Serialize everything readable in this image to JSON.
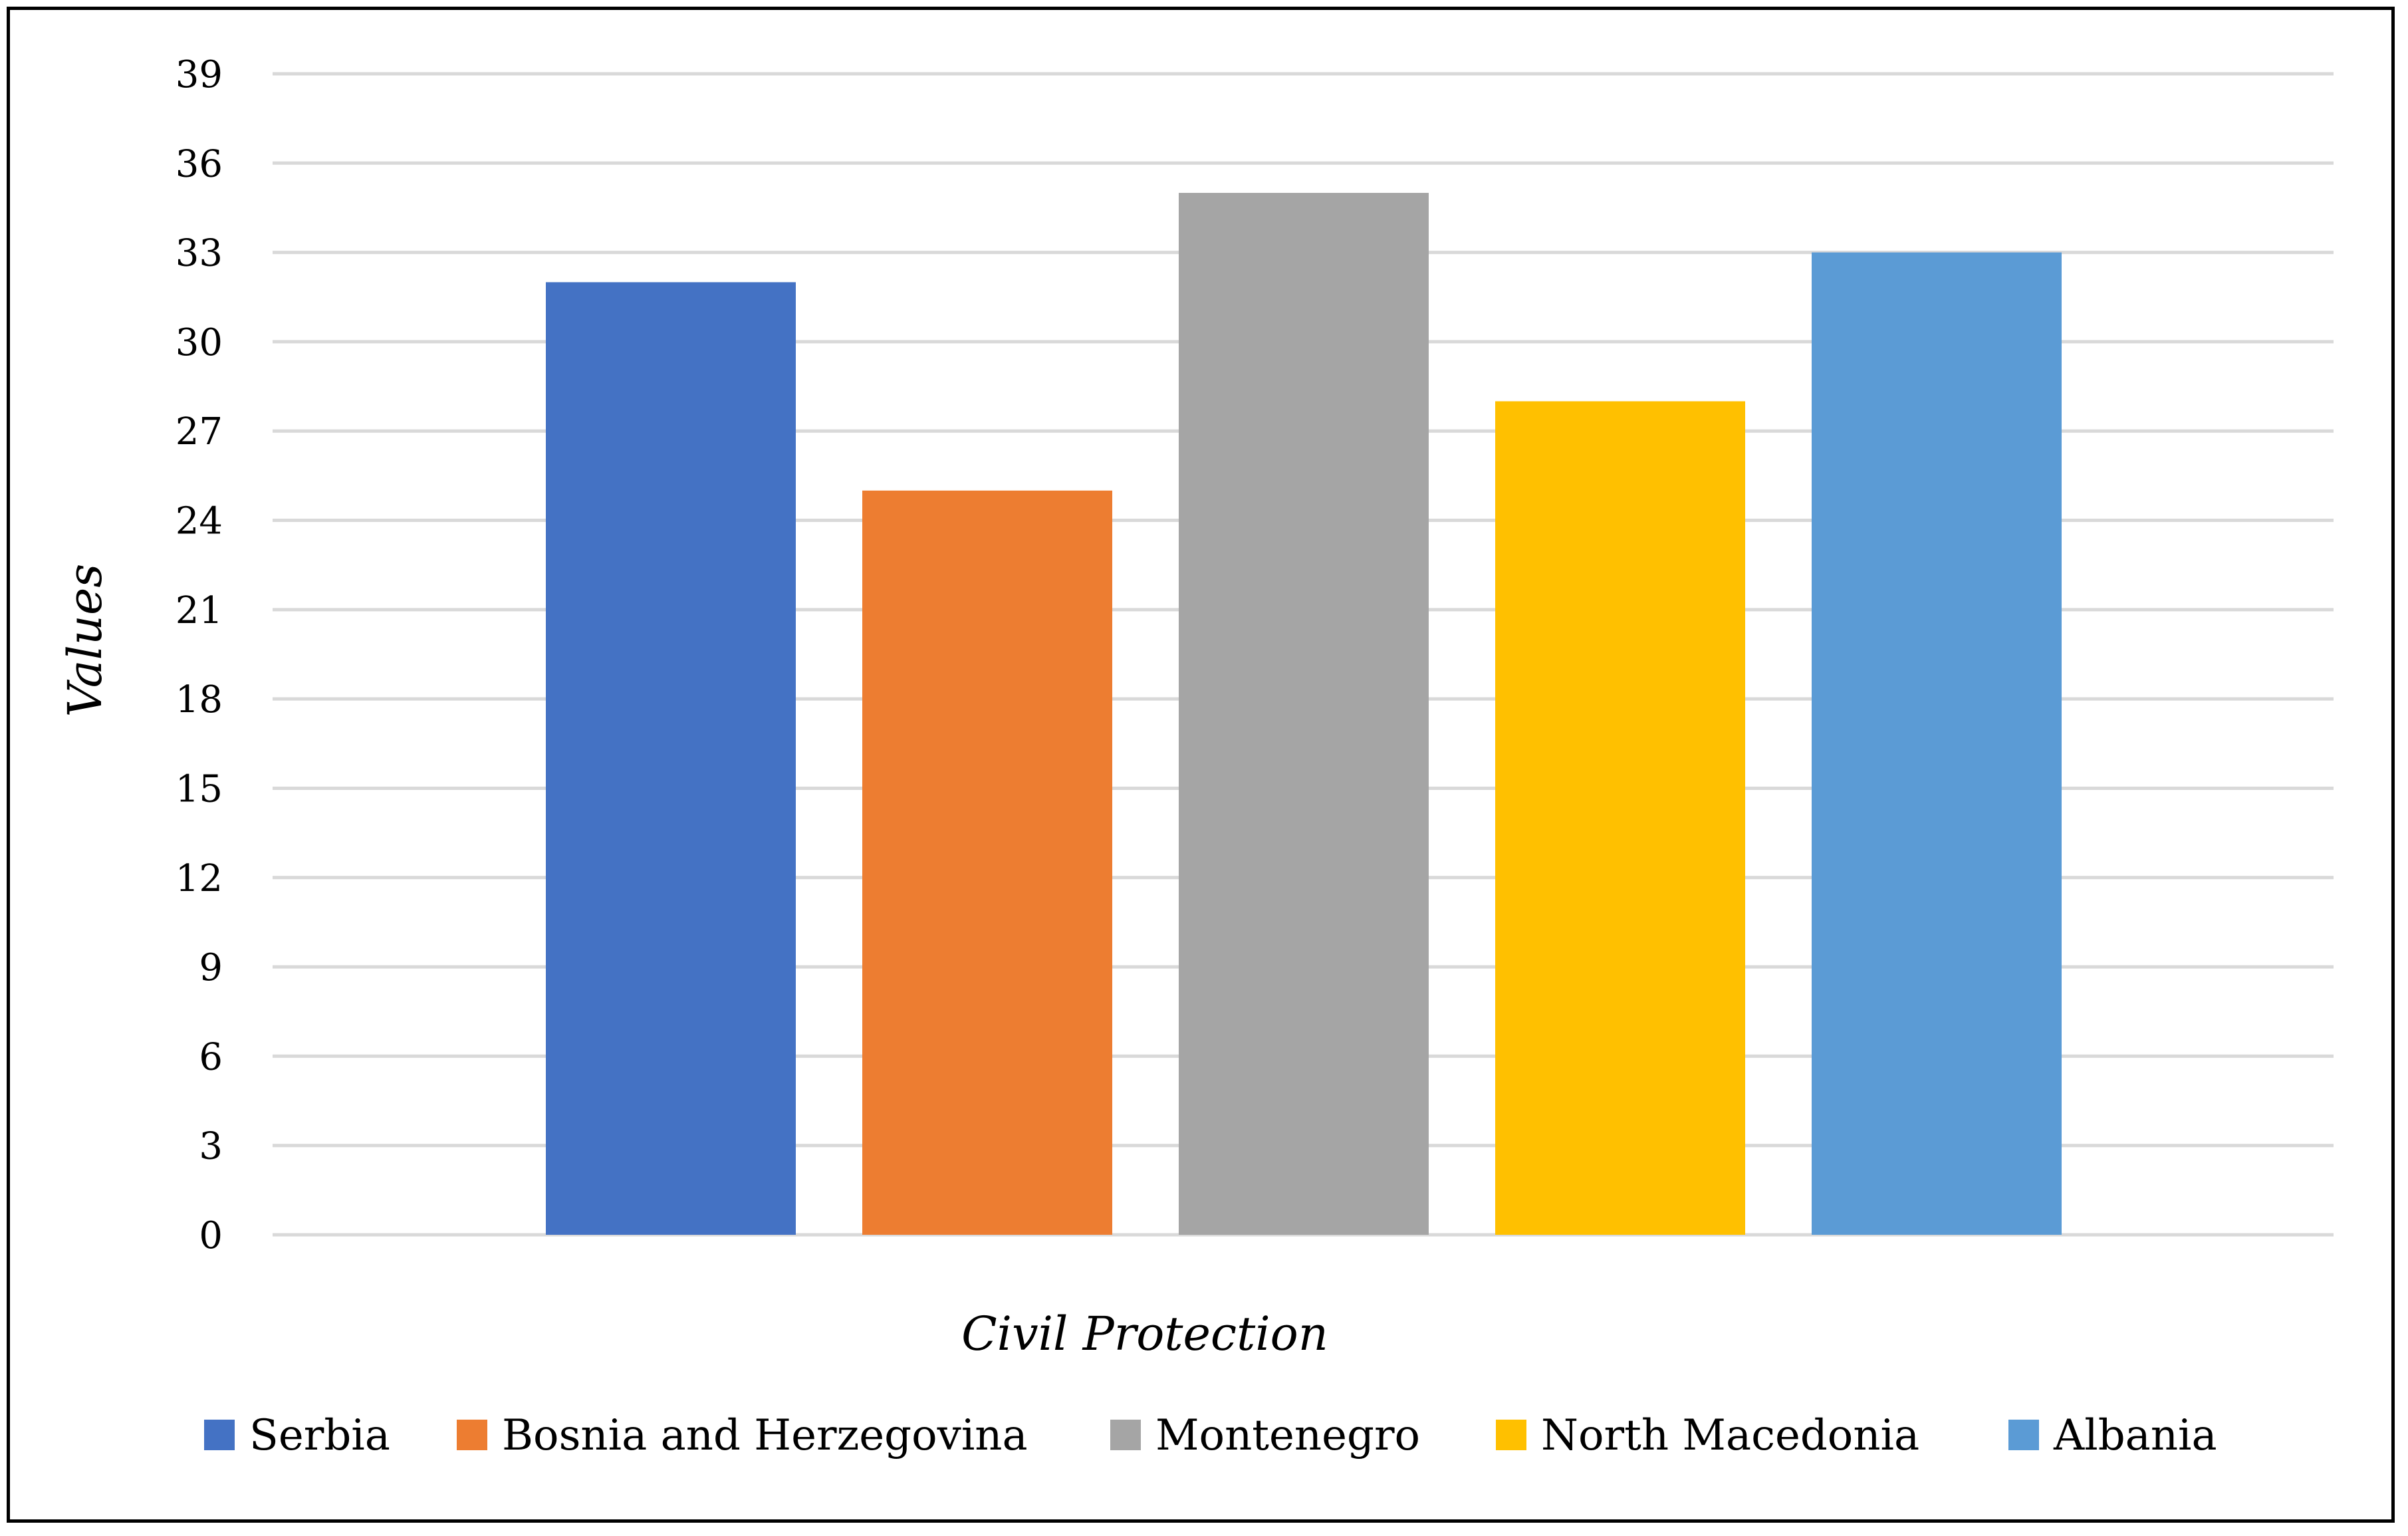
{
  "chart_data": {
    "type": "bar",
    "title": "",
    "xlabel": "Civil Protection",
    "ylabel": "Values",
    "categories": [
      "Civil Protection"
    ],
    "series": [
      {
        "name": "Serbia",
        "values": [
          32
        ],
        "color": "#4472C4"
      },
      {
        "name": "Bosnia and Herzegovina",
        "values": [
          25
        ],
        "color": "#ED7D31"
      },
      {
        "name": "Montenegro",
        "values": [
          35
        ],
        "color": "#A5A5A5"
      },
      {
        "name": "North Macedonia",
        "values": [
          28
        ],
        "color": "#FFC000"
      },
      {
        "name": "Albania",
        "values": [
          33
        ],
        "color": "#5B9BD5"
      }
    ],
    "ylim": [
      0,
      39
    ],
    "yticks": [
      0,
      3,
      6,
      9,
      12,
      15,
      18,
      21,
      24,
      27,
      30,
      33,
      36,
      39
    ],
    "grid": true,
    "grid_color": "#D9D9D9",
    "legend_position": "bottom"
  }
}
